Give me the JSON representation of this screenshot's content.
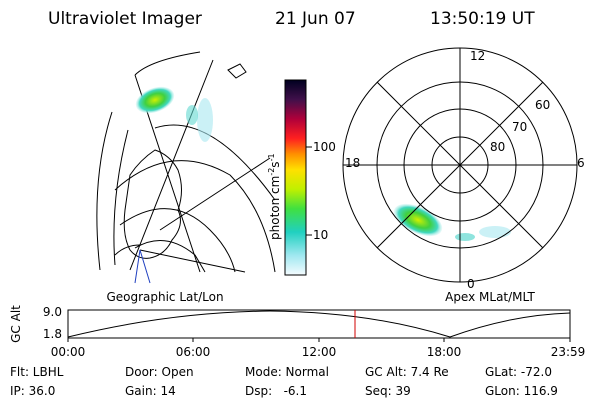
{
  "header": {
    "title": "Ultraviolet Imager",
    "date": "21 Jun 07",
    "time": "13:50:19 UT"
  },
  "colorbar": {
    "label": [
      "photon cm",
      "-2",
      "s",
      "-1"
    ],
    "ticks": [
      "100",
      "10"
    ]
  },
  "left_map": {
    "caption": "Geographic Lat/Lon"
  },
  "right_map": {
    "caption": "Apex MLat/MLT",
    "mlt_labels": [
      "12",
      "18",
      "6",
      "0"
    ],
    "lat_labels": [
      "60",
      "70",
      "80"
    ]
  },
  "timeline": {
    "axis_label": "GC Alt",
    "y_labels": [
      "9.0",
      "1.8"
    ],
    "x_labels": [
      "00:00",
      "06:00",
      "12:00",
      "18:00",
      "23:59"
    ]
  },
  "footer": {
    "rows": [
      [
        "Flt: LBHL",
        "Door: Open",
        "Mode: Normal",
        "GC Alt: 7.4 Re",
        "GLat: -72.0"
      ],
      [
        "IP: 36.0",
        "Gain: 14",
        "Dsp:   -6.1",
        "Seq: 39",
        "GLon: 116.9"
      ]
    ]
  }
}
